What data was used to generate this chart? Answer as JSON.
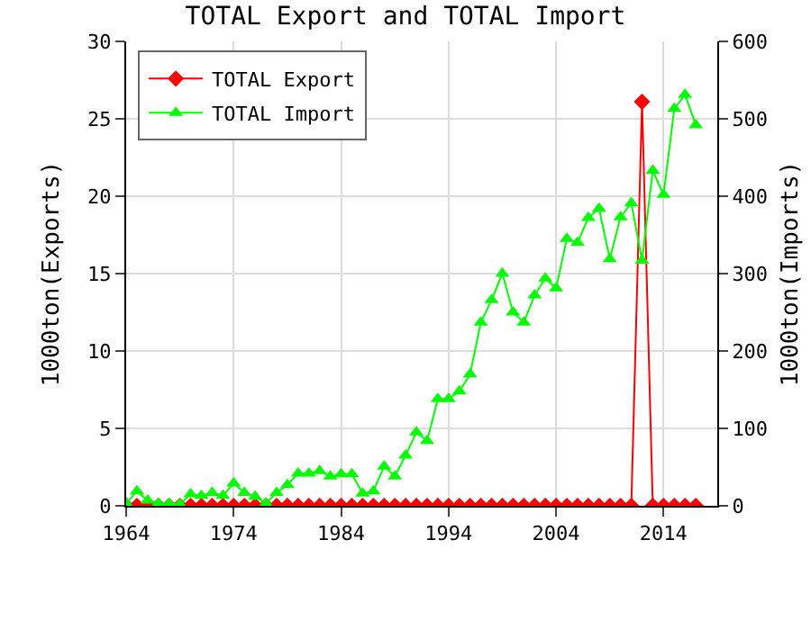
{
  "chart_data": {
    "type": "line",
    "title": "TOTAL Export and TOTAL Import",
    "ylabel": "1000ton(Exports)",
    "y2label": "1000ton(Imports)",
    "x": [
      1964,
      1965,
      1966,
      1967,
      1968,
      1969,
      1970,
      1971,
      1972,
      1973,
      1974,
      1975,
      1976,
      1977,
      1978,
      1979,
      1980,
      1981,
      1982,
      1983,
      1984,
      1985,
      1986,
      1987,
      1988,
      1989,
      1990,
      1991,
      1992,
      1993,
      1994,
      1995,
      1996,
      1997,
      1998,
      1999,
      2000,
      2001,
      2002,
      2003,
      2004,
      2005,
      2006,
      2007,
      2008,
      2009,
      2010,
      2011,
      2012,
      2013,
      2014,
      2015,
      2016,
      2017
    ],
    "series": [
      {
        "name": "TOTAL Export",
        "color": "#ff0000",
        "marker": "diamond",
        "values": [
          0,
          0,
          0,
          0,
          0,
          0,
          0,
          0,
          0,
          0,
          0,
          0,
          0,
          0,
          0,
          0,
          0,
          0,
          0,
          0,
          0,
          0,
          0,
          0,
          0,
          0,
          0,
          0,
          0,
          0,
          0,
          0,
          0,
          0,
          0,
          0,
          0,
          0,
          0,
          0,
          0,
          0,
          0,
          0,
          0,
          0,
          0,
          0,
          26.1,
          0,
          0,
          0,
          0,
          0
        ]
      },
      {
        "name": "TOTAL Import",
        "color": "#00ff00",
        "marker": "triangle",
        "axis": "y2",
        "values": [
          3,
          19,
          7,
          3,
          3,
          2,
          15,
          13,
          17,
          13,
          29,
          17,
          12,
          3,
          17,
          27,
          42,
          42,
          45,
          38,
          41,
          41,
          16,
          19,
          51,
          38,
          65,
          95,
          84,
          138,
          138,
          148,
          170,
          237,
          266,
          300,
          250,
          237,
          272,
          294,
          281,
          345,
          340,
          372,
          384,
          319,
          373,
          391,
          317,
          433,
          402,
          513,
          531,
          492
        ]
      }
    ],
    "xlim": [
      1964,
      2019
    ],
    "xticks": [
      1964,
      1974,
      1984,
      1994,
      2004,
      2014
    ],
    "ylim": [
      0,
      30
    ],
    "yticks": [
      0,
      5,
      10,
      15,
      20,
      25,
      30
    ],
    "y2lim": [
      0,
      600
    ],
    "y2ticks": [
      0,
      100,
      200,
      300,
      400,
      500,
      600
    ],
    "grid": true,
    "legend": "top left"
  }
}
